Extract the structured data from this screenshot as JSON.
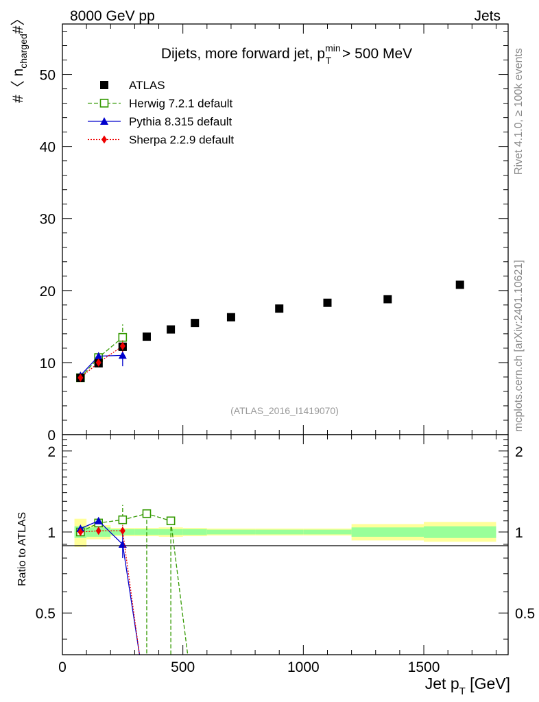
{
  "header": {
    "left": "8000 GeV pp",
    "right": "Jets",
    "title": "Dijets, more forward jet, p",
    "title_sup": "min",
    "title_sub": "T",
    "title_tail": " > 500 MeV",
    "watermark": "(ATLAS_2016_I1419070)",
    "side_rivet": "Rivet 4.1.0, ≥ 100k events",
    "side_mcplots": "mcplots.cern.ch [arXiv:2401.10621]"
  },
  "axes": {
    "ylabel_main": "#〈 n",
    "ylabel_main_sub": "charged",
    "ylabel_main_tail": "#〉",
    "ylabel_ratio": "Ratio to ATLAS",
    "xlabel": "Jet p",
    "xlabel_sub": "T",
    "xlabel_tail": " [GeV]"
  },
  "colors": {
    "atlas": "#000000",
    "herwig": "#339900",
    "pythia": "#0000cc",
    "sherpa": "#ee0000",
    "band_inner": "#99ff99",
    "band_outer": "#ffff99"
  },
  "chart_data": [
    {
      "type": "scatter",
      "panel": "main",
      "xlim": [
        0,
        1850
      ],
      "ylim": [
        0,
        57
      ],
      "x_ticks": [
        0,
        500,
        1000,
        1500
      ],
      "y_ticks": [
        0,
        10,
        20,
        30,
        40,
        50
      ],
      "y_tick_labels": [
        "0",
        "10",
        "20",
        "30",
        "40",
        "50"
      ],
      "legend": [
        "ATLAS",
        "Herwig 7.2.1 default",
        "Pythia 8.315 default",
        "Sherpa 2.2.9 default"
      ],
      "series": [
        {
          "name": "ATLAS",
          "style": "marker",
          "x": [
            75,
            150,
            250,
            350,
            450,
            550,
            700,
            900,
            1100,
            1350,
            1650
          ],
          "y": [
            7.9,
            9.9,
            12.2,
            13.6,
            14.6,
            15.5,
            16.3,
            17.5,
            18.3,
            18.8,
            20.8
          ]
        },
        {
          "name": "Herwig 7.2.1 default",
          "style": "dashed-open-square",
          "x": [
            75,
            150,
            250
          ],
          "y": [
            7.9,
            10.7,
            13.5
          ],
          "err": [
            0.2,
            0.5,
            1.8
          ]
        },
        {
          "name": "Pythia 8.315 default",
          "style": "solid-triangle",
          "x": [
            75,
            150,
            250
          ],
          "y": [
            8.2,
            10.9,
            11.0
          ],
          "err": [
            0.2,
            0.5,
            1.5
          ]
        },
        {
          "name": "Sherpa 2.2.9 default",
          "style": "dotted-diamond",
          "x": [
            75,
            150,
            250
          ],
          "y": [
            7.9,
            10.0,
            12.3
          ],
          "err": [
            0.2,
            0.3,
            0.8
          ]
        }
      ]
    },
    {
      "type": "line",
      "panel": "ratio",
      "xlim": [
        0,
        1850
      ],
      "ylim": [
        0.35,
        2.3
      ],
      "y_scale": "log",
      "x_ticks": [
        0,
        500,
        1000,
        1500
      ],
      "x_tick_labels": [
        "0",
        "500",
        "1000",
        "1500"
      ],
      "y_ticks": [
        0.5,
        1,
        2
      ],
      "y_tick_labels": [
        "0.5",
        "1",
        "2"
      ],
      "bands": [
        {
          "x_lo": 50,
          "x_hi": 100,
          "inner": [
            0.95,
            1.05
          ],
          "outer": [
            0.88,
            1.12
          ]
        },
        {
          "x_lo": 100,
          "x_hi": 200,
          "inner": [
            0.96,
            1.04
          ],
          "outer": [
            0.94,
            1.06
          ]
        },
        {
          "x_lo": 200,
          "x_hi": 300,
          "inner": [
            0.975,
            1.025
          ],
          "outer": [
            0.965,
            1.035
          ]
        },
        {
          "x_lo": 300,
          "x_hi": 400,
          "inner": [
            0.975,
            1.025
          ],
          "outer": [
            0.965,
            1.035
          ]
        },
        {
          "x_lo": 400,
          "x_hi": 500,
          "inner": [
            0.975,
            1.025
          ],
          "outer": [
            0.96,
            1.04
          ]
        },
        {
          "x_lo": 500,
          "x_hi": 600,
          "inner": [
            0.975,
            1.025
          ],
          "outer": [
            0.965,
            1.035
          ]
        },
        {
          "x_lo": 600,
          "x_hi": 800,
          "inner": [
            0.98,
            1.02
          ],
          "outer": [
            0.97,
            1.03
          ]
        },
        {
          "x_lo": 800,
          "x_hi": 1000,
          "inner": [
            0.98,
            1.02
          ],
          "outer": [
            0.97,
            1.03
          ]
        },
        {
          "x_lo": 1000,
          "x_hi": 1200,
          "inner": [
            0.98,
            1.02
          ],
          "outer": [
            0.97,
            1.03
          ]
        },
        {
          "x_lo": 1200,
          "x_hi": 1500,
          "inner": [
            0.96,
            1.04
          ],
          "outer": [
            0.93,
            1.07
          ]
        },
        {
          "x_lo": 1500,
          "x_hi": 1800,
          "inner": [
            0.95,
            1.05
          ],
          "outer": [
            0.92,
            1.09
          ]
        }
      ],
      "series": [
        {
          "name": "Herwig 7.2.1 default",
          "style": "dashed-open-square",
          "x": [
            75,
            150,
            250,
            350,
            450
          ],
          "y": [
            1.0,
            1.08,
            1.11,
            1.17,
            1.1
          ],
          "err": [
            0.02,
            0.05,
            0.15,
            0,
            0
          ],
          "drop_x": [
            350,
            450,
            520
          ]
        },
        {
          "name": "Pythia 8.315 default",
          "style": "solid-triangle",
          "x": [
            75,
            150,
            250
          ],
          "y": [
            1.03,
            1.1,
            0.9
          ],
          "err": [
            0.02,
            0.03,
            0.1
          ],
          "drop_to_x": 320
        },
        {
          "name": "Sherpa 2.2.9 default",
          "style": "dotted-diamond",
          "x": [
            75,
            150,
            250
          ],
          "y": [
            1.0,
            1.01,
            1.01
          ],
          "err": [
            0.02,
            0.03,
            0.05
          ],
          "drop_to_x": 320
        }
      ]
    }
  ]
}
